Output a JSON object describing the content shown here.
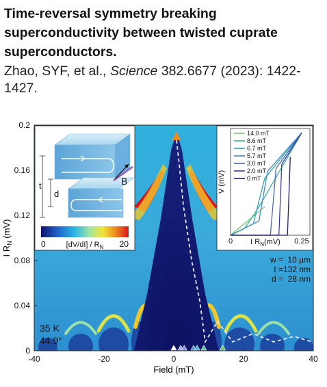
{
  "header": {
    "title": "Time-reversal symmetry breaking superconductivity between twisted cuprate superconductors.",
    "citation_authors": "Zhao, SYF, et al., ",
    "citation_journal": "Science",
    "citation_rest": " 382.6677 (2023): 1422-1427."
  },
  "figure": {
    "xlabel": "Field (mT)",
    "ylabel": "I R",
    "ylabel_sub": "N",
    "ylabel_unit": " (mV)",
    "xticks": [
      "-40",
      "-20",
      "0",
      "20",
      "40"
    ],
    "yticks": [
      "0",
      "0.04",
      "0.08",
      "0.12",
      "0.16",
      "0.2"
    ],
    "sample_temp": "35 K",
    "sample_angle": "44.9°",
    "params": {
      "w_label": "w =",
      "w_value": "10 µm",
      "t_label": "t =",
      "t_value": "132 nm",
      "d_label": "d =",
      "d_value": "28 nm"
    },
    "colorbar": {
      "min": "0",
      "max": "20",
      "label": "[dV/dI] / R",
      "label_sub": "N",
      "colors": [
        "#11136b",
        "#1f5fc8",
        "#29b6e6",
        "#9fe3a4",
        "#f0e53c",
        "#f08a1c",
        "#d7151a"
      ]
    },
    "schematic": {
      "t_label": "t",
      "d_label": "d",
      "b_label": "B"
    },
    "inset": {
      "xlabel": "I R",
      "xlabel_sub": "N",
      "xlabel_unit": "(mV)",
      "ylabel": "V (mV)",
      "xticks": [
        "0",
        "0.25"
      ],
      "legend": [
        {
          "label": "14.0 mT",
          "color": "#7cc36a"
        },
        {
          "label": "8.6 mT",
          "color": "#35b69b"
        },
        {
          "label": "6.7 mT",
          "color": "#2aa3b5"
        },
        {
          "label": "5.7 mT",
          "color": "#3f89cc"
        },
        {
          "label": "3.0 mT",
          "color": "#4a63c4"
        },
        {
          "label": "2.0 mT",
          "color": "#3a3fa6"
        },
        {
          "label": "0 mT",
          "color": "#1b1f78"
        }
      ]
    },
    "markers": [
      {
        "field": 0,
        "color": "#ffffff"
      },
      {
        "field": 2.0,
        "color": "#9aa4e8"
      },
      {
        "field": 3.0,
        "color": "#7f8ee0"
      },
      {
        "field": 5.7,
        "color": "#4a8fd6"
      },
      {
        "field": 6.7,
        "color": "#34b2c4"
      },
      {
        "field": 8.6,
        "color": "#4ec9a3"
      },
      {
        "field": 14.0,
        "color": "#6ac34f"
      }
    ]
  },
  "chart_data": {
    "type": "heatmap",
    "xlabel": "Field (mT)",
    "ylabel": "I R_N (mV)",
    "xlim": [
      -40,
      40
    ],
    "ylim": [
      0,
      0.2
    ],
    "colorbar_range": [
      0,
      20
    ],
    "colorbar_label": "[dV/dI] / R_N",
    "series": [
      {
        "name": "superconducting region boundary (estimated)",
        "x": [
          -12,
          -8,
          -4,
          -2,
          0,
          2,
          4,
          8,
          12
        ],
        "y": [
          0,
          0.04,
          0.1,
          0.155,
          0.195,
          0.155,
          0.1,
          0.04,
          0
        ]
      }
    ],
    "inset": {
      "type": "line",
      "xlabel": "I R_N (mV)",
      "ylabel": "V (mV)",
      "xlim": [
        0,
        0.25
      ],
      "series": [
        {
          "name": "14.0 mT",
          "x": [
            0,
            0.12
          ],
          "y": [
            0,
            0.2
          ]
        },
        {
          "name": "8.6 mT",
          "x": [
            0,
            0.05,
            0.1,
            0.25
          ],
          "y": [
            0,
            0.05,
            0.2,
            0.72
          ]
        },
        {
          "name": "6.7 mT",
          "x": [
            0,
            0.08,
            0.12,
            0.25
          ],
          "y": [
            0,
            0.08,
            0.4,
            0.72
          ]
        },
        {
          "name": "5.7 mT",
          "x": [
            0,
            0.1,
            0.13,
            0.25
          ],
          "y": [
            0,
            0.1,
            0.45,
            0.72
          ]
        },
        {
          "name": "3.0 mT",
          "x": [
            0,
            0.14,
            0.16,
            0.25
          ],
          "y": [
            0,
            0.0,
            0.47,
            0.72
          ]
        },
        {
          "name": "2.0 mT",
          "x": [
            0,
            0.17,
            0.18,
            0.25
          ],
          "y": [
            0,
            0.0,
            0.5,
            0.72
          ]
        },
        {
          "name": "0 mT",
          "x": [
            0,
            0.2,
            0.21
          ],
          "y": [
            0,
            0.0,
            0.55
          ]
        }
      ]
    }
  }
}
